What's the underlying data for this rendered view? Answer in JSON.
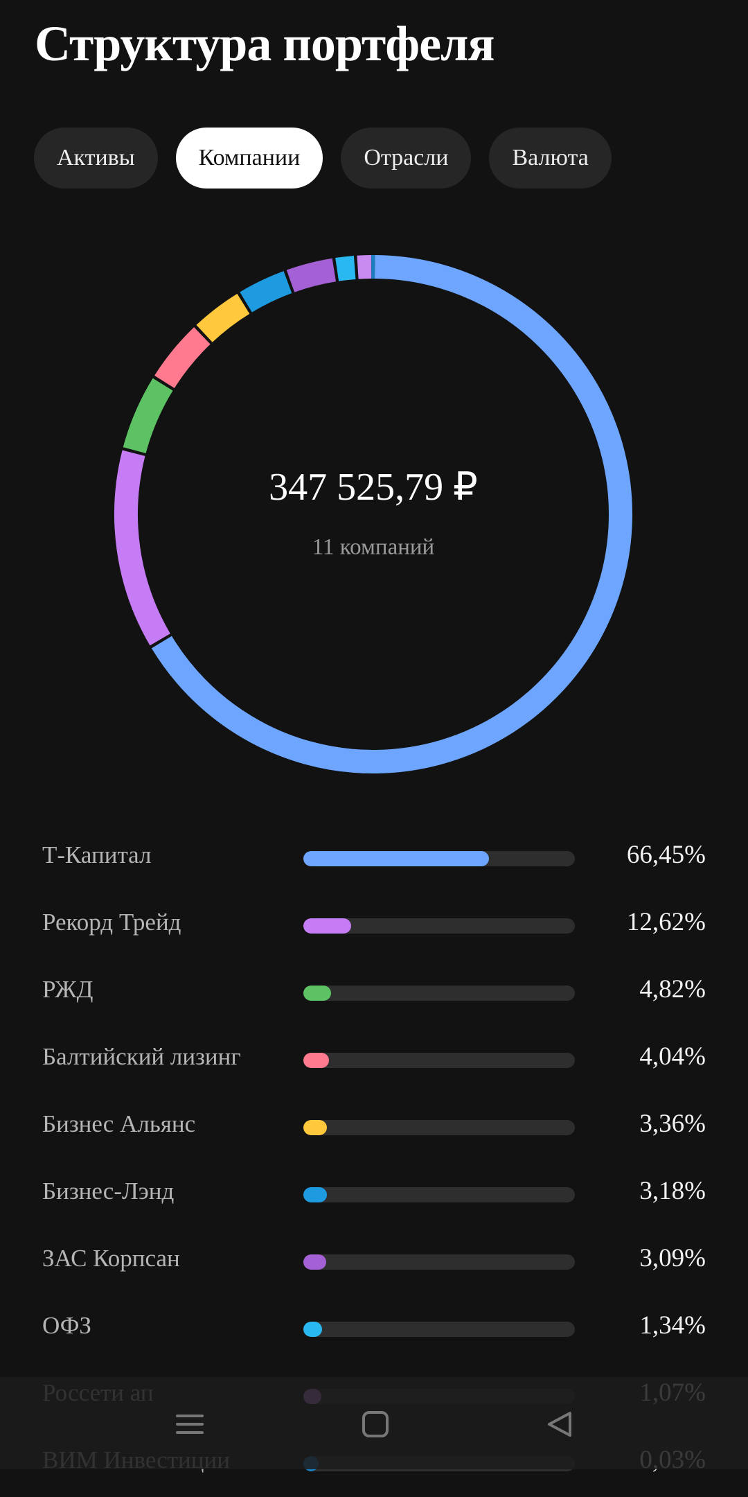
{
  "header": {
    "title": "Структура портфеля"
  },
  "tabs": [
    {
      "label": "Активы",
      "active": false
    },
    {
      "label": "Компании",
      "active": true
    },
    {
      "label": "Отрасли",
      "active": false
    },
    {
      "label": "Валюта",
      "active": false
    }
  ],
  "summary": {
    "total": "347 525,79 ₽",
    "subtitle": "11 компаний"
  },
  "items": [
    {
      "name": "Т-Капитал",
      "percent": {
        "value": 66.45,
        "label": "66,45%"
      },
      "color": "#6ea6ff"
    },
    {
      "name": "Рекорд Трейд",
      "percent": {
        "value": 12.62,
        "label": "12,62%"
      },
      "color": "#c57cf5"
    },
    {
      "name": "РЖД",
      "percent": {
        "value": 4.82,
        "label": "4,82%"
      },
      "color": "#5cc264"
    },
    {
      "name": "Балтийский лизинг",
      "percent": {
        "value": 4.04,
        "label": "4,04%"
      },
      "color": "#ff7a8f"
    },
    {
      "name": "Бизнес Альянс",
      "percent": {
        "value": 3.36,
        "label": "3,36%"
      },
      "color": "#ffc83d"
    },
    {
      "name": "Бизнес-Лэнд",
      "percent": {
        "value": 3.18,
        "label": "3,18%"
      },
      "color": "#1e9ae0"
    },
    {
      "name": "ЗАС Корпсан",
      "percent": {
        "value": 3.09,
        "label": "3,09%"
      },
      "color": "#a461d6"
    },
    {
      "name": "ОФЗ",
      "percent": {
        "value": 1.34,
        "label": "1,34%"
      },
      "color": "#2ab8f0"
    },
    {
      "name": "Россети ап",
      "percent": {
        "value": 1.07,
        "label": "1,07%"
      },
      "color": "#c98af0"
    },
    {
      "name": "ВИМ Инвестиции",
      "percent": {
        "value": 0.03,
        "label": "0,03%"
      },
      "color": "#1c7fc0"
    }
  ]
}
